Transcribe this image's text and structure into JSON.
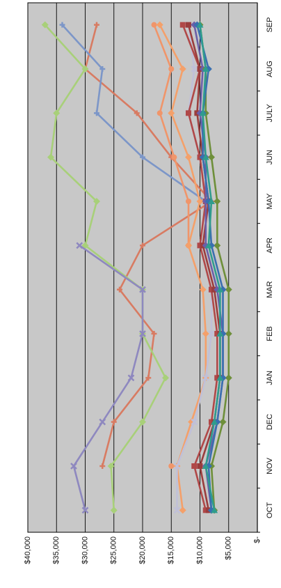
{
  "chart_data": {
    "type": "line",
    "orientation": "rotated-90-clockwise",
    "categories": [
      "OCT",
      "NOV",
      "DEC",
      "JAN",
      "FEB",
      "MAR",
      "APR",
      "MAY",
      "JUN",
      "JULY",
      "AUG",
      "SEP"
    ],
    "y_tick_labels": [
      "$-",
      "$5,000",
      "$10,000",
      "$15,000",
      "$20,000",
      "$25,000",
      "$30,000",
      "$35,000",
      "$40,000"
    ],
    "ylim": [
      0,
      40000
    ],
    "grid": true,
    "plot_background": "#c8c8c8",
    "series": [
      {
        "color": "#d87b62",
        "marker": "plus",
        "values": [
          null,
          27000,
          25000,
          19000,
          18000,
          24000,
          20000,
          8000,
          15000,
          21000,
          30000,
          28000
        ]
      },
      {
        "color": "#a8d079",
        "marker": "diamond",
        "values": [
          25000,
          25500,
          20000,
          16000,
          20000,
          20000,
          30000,
          28000,
          36000,
          35000,
          30000,
          37000
        ]
      },
      {
        "color": "#8e88bf",
        "marker": "x",
        "values": [
          30000,
          32000,
          27000,
          22000,
          20000,
          20000,
          31000,
          null,
          null,
          null,
          null,
          null
        ]
      },
      {
        "color": "#7c96c8",
        "marker": "plus",
        "values": [
          null,
          null,
          null,
          null,
          null,
          null,
          null,
          9000,
          20000,
          28000,
          27000,
          34000
        ]
      },
      {
        "color": "#f0956a",
        "marker": "circle",
        "values": [
          null,
          15000,
          null,
          null,
          null,
          null,
          12000,
          12000,
          14500,
          17000,
          15000,
          18000
        ]
      },
      {
        "color": "#f4a06a",
        "marker": "diamond",
        "values": [
          13000,
          14000,
          11500,
          9000,
          9000,
          9500,
          12000,
          10000,
          12000,
          15000,
          13000,
          17000
        ]
      },
      {
        "color": "#c0c0d8",
        "marker": "x",
        "values": [
          14000,
          14000,
          11000,
          9000,
          8000,
          8000,
          10000,
          9000,
          10000,
          12000,
          11000,
          12000
        ]
      },
      {
        "color": "#b04848",
        "marker": "square",
        "values": [
          9000,
          11000,
          8000,
          7000,
          7000,
          8000,
          10000,
          9000,
          10000,
          12000,
          10000,
          13000
        ]
      },
      {
        "color": "#9a3d3d",
        "marker": "square",
        "values": [
          8500,
          10000,
          7500,
          6500,
          6500,
          7500,
          9500,
          8500,
          9500,
          10500,
          10000,
          12000
        ]
      },
      {
        "color": "#6b5fa8",
        "marker": "diamond",
        "values": [
          8000,
          9000,
          7000,
          6000,
          6000,
          7000,
          9000,
          9000,
          9000,
          10000,
          9500,
          11000
        ]
      },
      {
        "color": "#6e8f3a",
        "marker": "diamond",
        "values": [
          7500,
          8000,
          6000,
          5000,
          5000,
          5000,
          7000,
          7000,
          8000,
          9000,
          9000,
          10000
        ]
      },
      {
        "color": "#3a6fb0",
        "marker": "diamond",
        "values": [
          8000,
          8500,
          7000,
          6000,
          6000,
          6000,
          8000,
          8500,
          9500,
          9500,
          8500,
          10500
        ]
      },
      {
        "color": "#2f9c8e",
        "marker": "triangle",
        "values": [
          7500,
          9000,
          7500,
          6500,
          6500,
          6500,
          8500,
          8000,
          9000,
          9500,
          9000,
          10000
        ]
      }
    ]
  }
}
